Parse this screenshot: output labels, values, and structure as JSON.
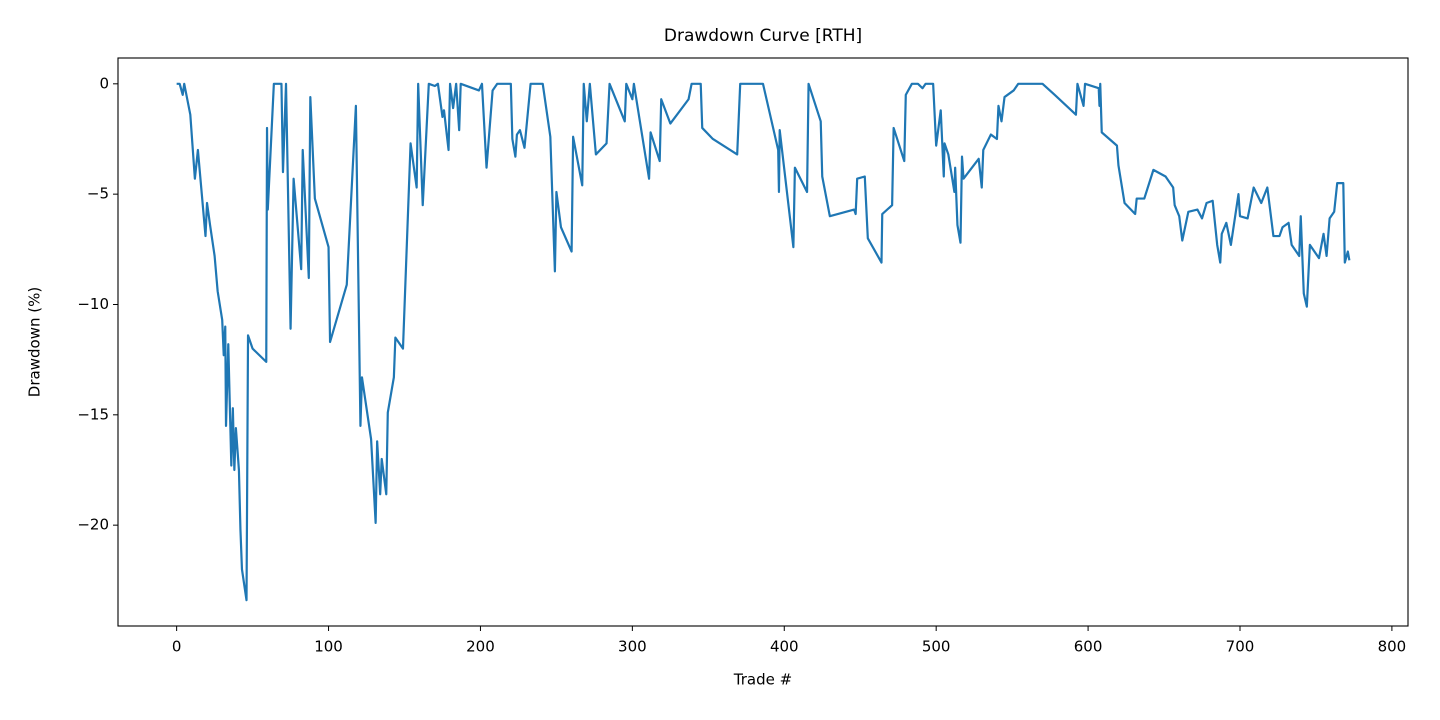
{
  "chart_data": {
    "type": "line",
    "title": "Drawdown Curve [RTH]",
    "xlabel": "Trade #",
    "ylabel": "Drawdown (%)",
    "color": "#1f77b4",
    "x": [
      0,
      2,
      4,
      5,
      9,
      12,
      14,
      19,
      20,
      22,
      25,
      27,
      30,
      31,
      32,
      32.5,
      34,
      36,
      37,
      38,
      39,
      41,
      42,
      43,
      46,
      47,
      50,
      59,
      59.5,
      60,
      64,
      69,
      70,
      72,
      75,
      77,
      82,
      83,
      87,
      88,
      91,
      100,
      101,
      112,
      118,
      121,
      122,
      128,
      131,
      132,
      134,
      135,
      138,
      139,
      143,
      144,
      149,
      154,
      158,
      159,
      162,
      166,
      170,
      172,
      175,
      176,
      179,
      180,
      182,
      184,
      186,
      187,
      199,
      201,
      204,
      208,
      211,
      220,
      221,
      223,
      224,
      226,
      229,
      233,
      241,
      246,
      249,
      250,
      253,
      260,
      261,
      267,
      268,
      270,
      272,
      276,
      283,
      285,
      295,
      296,
      300,
      301,
      311,
      312,
      318,
      319,
      325,
      337,
      339,
      345,
      346,
      353,
      369,
      371,
      386,
      396,
      396.5,
      397,
      406,
      407,
      415,
      416,
      424,
      425,
      430,
      446,
      447,
      448,
      453,
      455,
      464,
      464.5,
      471,
      472,
      479,
      480,
      484,
      488,
      491,
      493,
      498,
      500,
      503,
      505,
      505.5,
      508,
      512,
      512.5,
      514,
      516,
      517,
      518,
      528,
      530,
      531,
      536,
      540,
      541,
      543,
      545,
      551,
      554,
      570,
      578,
      592,
      593,
      597,
      598,
      607,
      607.5,
      608,
      609,
      619,
      620,
      624,
      631,
      632,
      637,
      643,
      651,
      656,
      657,
      660,
      662,
      666,
      672,
      675,
      678,
      682,
      685,
      687,
      688,
      691,
      694,
      699,
      700,
      705,
      709,
      714,
      718,
      720,
      722,
      726,
      728,
      732,
      734,
      739,
      740,
      742,
      744,
      746,
      752,
      755,
      757,
      759,
      762,
      764,
      768,
      769,
      771,
      772
    ],
    "values": [
      0,
      0,
      -0.5,
      0,
      -1.4,
      -4.3,
      -3.0,
      -6.9,
      -5.4,
      -6.4,
      -7.8,
      -9.4,
      -10.7,
      -12.3,
      -11.0,
      -15.5,
      -11.8,
      -17.3,
      -14.7,
      -17.5,
      -15.6,
      -17.5,
      -20.2,
      -22.0,
      -23.4,
      -11.4,
      -12.0,
      -12.6,
      -2.0,
      -5.7,
      0,
      0,
      -4.0,
      0,
      -11.1,
      -4.3,
      -8.4,
      -3.0,
      -8.8,
      -0.6,
      -5.2,
      -7.4,
      -11.7,
      -9.1,
      -1.0,
      -15.5,
      -13.3,
      -16.1,
      -19.9,
      -16.2,
      -18.6,
      -17.0,
      -18.6,
      -14.9,
      -13.3,
      -11.5,
      -12.0,
      -2.7,
      -4.7,
      0,
      -5.5,
      0,
      -0.1,
      0,
      -1.5,
      -1.2,
      -3.0,
      0,
      -1.1,
      0,
      -2.1,
      0,
      -0.3,
      0,
      -3.8,
      -0.3,
      0,
      0,
      -2.5,
      -3.3,
      -2.3,
      -2.1,
      -2.9,
      0,
      0,
      -2.4,
      -8.5,
      -4.9,
      -6.5,
      -7.6,
      -2.4,
      -4.6,
      0,
      -1.7,
      0,
      -3.2,
      -2.7,
      0,
      -1.7,
      0,
      -0.7,
      0,
      -4.3,
      -2.2,
      -3.5,
      -0.7,
      -1.8,
      -0.7,
      0,
      0,
      -2.0,
      -2.5,
      -3.2,
      0,
      0,
      -3.0,
      -4.9,
      -2.1,
      -7.4,
      -3.8,
      -4.9,
      0,
      -1.7,
      -4.2,
      -6.0,
      -5.7,
      -5.9,
      -4.3,
      -4.2,
      -7.0,
      -8.1,
      -5.9,
      -5.5,
      -2.0,
      -3.5,
      -0.5,
      0,
      0,
      -0.2,
      0,
      0,
      -2.8,
      -1.2,
      -4.2,
      -2.7,
      -3.2,
      -4.9,
      -3.8,
      -6.4,
      -7.2,
      -3.3,
      -4.3,
      -3.4,
      -4.7,
      -3.0,
      -2.3,
      -2.5,
      -1.0,
      -1.7,
      -0.6,
      -0.3,
      0,
      0,
      -0.5,
      -1.4,
      0,
      -1.0,
      0,
      -0.2,
      -1.0,
      0,
      -2.2,
      -2.8,
      -3.7,
      -5.4,
      -5.9,
      -5.2,
      -5.2,
      -3.9,
      -4.2,
      -4.7,
      -5.5,
      -6.0,
      -7.1,
      -5.8,
      -5.7,
      -6.1,
      -5.4,
      -5.3,
      -7.3,
      -8.1,
      -6.8,
      -6.3,
      -7.3,
      -5.0,
      -6.0,
      -6.1,
      -4.7,
      -5.4,
      -4.7,
      -5.8,
      -6.9,
      -6.9,
      -6.5,
      -6.3,
      -7.3,
      -7.8,
      -6.0,
      -9.5,
      -10.1,
      -7.3,
      -7.9,
      -6.8,
      -7.8,
      -6.1,
      -5.8,
      -4.5,
      -4.5,
      -8.1,
      -7.6,
      -8.0
    ],
    "xlim": [
      -38.6,
      810.6
    ],
    "ylim": [
      -24.57,
      1.17
    ],
    "xticks": [
      0,
      100,
      200,
      300,
      400,
      500,
      600,
      700,
      800
    ],
    "yticks": [
      {
        "value": -20,
        "label": "−20"
      },
      {
        "value": -15,
        "label": "−15"
      },
      {
        "value": -10,
        "label": "−10"
      },
      {
        "value": -5,
        "label": "−5"
      },
      0
    ]
  }
}
